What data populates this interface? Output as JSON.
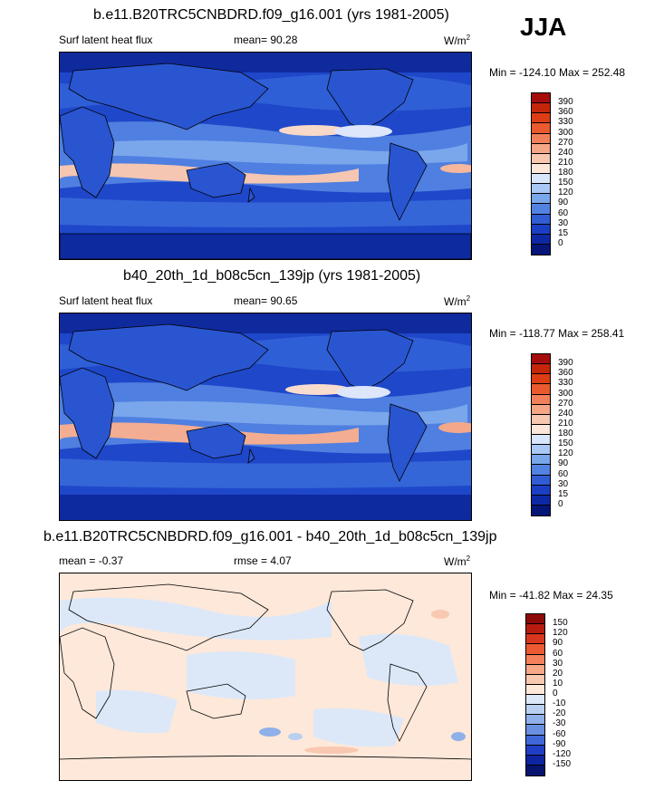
{
  "season": "JJA",
  "panels": [
    {
      "title": "b.e11.B20TRC5CNBDRD.f09_g16.001 (yrs 1981-2005)",
      "left_label": "Surf latent heat flux",
      "center_label": "mean=  90.28",
      "units_base": "W/m",
      "units_exp": "2",
      "minmax": "Min = -124.10 Max = 252.48",
      "levels": [
        "390",
        "360",
        "330",
        "300",
        "270",
        "240",
        "210",
        "180",
        "150",
        "120",
        "90",
        "60",
        "30",
        "15",
        "0"
      ],
      "colors": [
        "#a50d0d",
        "#c4260a",
        "#dc3d14",
        "#eb5a2e",
        "#f1805a",
        "#f5a687",
        "#f8c7b0",
        "#fbe6d9",
        "#d7e6fb",
        "#a9c8f5",
        "#7aa6ec",
        "#5383e2",
        "#305dd4",
        "#1a3fc4",
        "#0e28a4",
        "#061578"
      ]
    },
    {
      "title": "b40_20th_1d_b08c5cn_139jp (yrs 1981-2005)",
      "left_label": "Surf latent heat flux",
      "center_label": "mean=  90.65",
      "units_base": "W/m",
      "units_exp": "2",
      "minmax": "Min = -118.77 Max = 258.41",
      "levels": [
        "390",
        "360",
        "330",
        "300",
        "270",
        "240",
        "210",
        "180",
        "150",
        "120",
        "90",
        "60",
        "30",
        "15",
        "0"
      ],
      "colors": [
        "#a50d0d",
        "#c4260a",
        "#dc3d14",
        "#eb5a2e",
        "#f1805a",
        "#f5a687",
        "#f8c7b0",
        "#fbe6d9",
        "#d7e6fb",
        "#a9c8f5",
        "#7aa6ec",
        "#5383e2",
        "#305dd4",
        "#1a3fc4",
        "#0e28a4",
        "#061578"
      ]
    },
    {
      "title": "b.e11.B20TRC5CNBDRD.f09_g16.001 - b40_20th_1d_b08c5cn_139jp",
      "left_label": "mean =  -0.37",
      "center_label": "rmse =   4.07",
      "units_base": "W/m",
      "units_exp": "2",
      "minmax": "Min = -41.82 Max =  24.35",
      "levels": [
        "150",
        "120",
        "90",
        "60",
        "30",
        "20",
        "10",
        "0",
        "-10",
        "-20",
        "-30",
        "-60",
        "-90",
        "-120",
        "-150"
      ],
      "colors": [
        "#8c0a0a",
        "#b81c10",
        "#d93620",
        "#ec5a34",
        "#f3825c",
        "#f6a887",
        "#f9c8b0",
        "#fde8da",
        "#dce8f8",
        "#b9d0f0",
        "#8fb0e8",
        "#6a90e0",
        "#4068d8",
        "#1f40c4",
        "#0e24a0",
        "#061470"
      ]
    }
  ]
}
